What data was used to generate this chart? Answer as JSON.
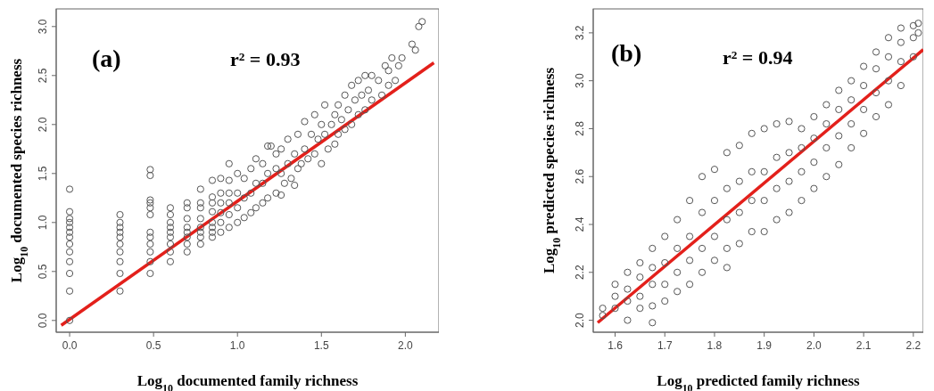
{
  "chart_data": [
    {
      "type": "scatter",
      "xlabel": "Log$_{10}$ documented family richness",
      "ylabel": "Log$_{10}$ documented species richness",
      "annotations": [
        "(a)",
        "r² = 0.93"
      ],
      "marker": "circle",
      "xlim": [
        -0.08,
        2.2
      ],
      "ylim": [
        -0.12,
        3.18
      ],
      "xticks": [
        {
          "value": 0,
          "label": "0.0"
        },
        {
          "value": 0.5,
          "label": "0.5"
        },
        {
          "value": 1,
          "label": "1.0"
        },
        {
          "value": 1.5,
          "label": "1.5"
        },
        {
          "value": 2,
          "label": "2.0"
        }
      ],
      "yticks": [
        {
          "value": 0,
          "label": "0.0"
        },
        {
          "value": 0.5,
          "label": "0.5"
        },
        {
          "value": 1,
          "label": "1.0"
        },
        {
          "value": 1.5,
          "label": "1.5"
        },
        {
          "value": 2,
          "label": "2.0"
        },
        {
          "value": 2.5,
          "label": "2.5"
        },
        {
          "value": 3,
          "label": "3.0"
        }
      ],
      "series": [
        {
          "type": "scatter",
          "color": "#555555",
          "x": [
            0,
            0,
            0,
            0,
            0,
            0,
            0,
            0,
            0,
            0,
            0,
            0,
            0,
            0.3,
            0.3,
            0.3,
            0.3,
            0.3,
            0.3,
            0.3,
            0.3,
            0.3,
            0.3,
            0.48,
            0.48,
            0.48,
            0.48,
            0.48,
            0.48,
            0.48,
            0.48,
            0.48,
            0.48,
            0.48,
            0.48,
            0.6,
            0.6,
            0.6,
            0.6,
            0.6,
            0.6,
            0.6,
            0.6,
            0.6,
            0.7,
            0.7,
            0.7,
            0.7,
            0.7,
            0.7,
            0.7,
            0.7,
            0.78,
            0.78,
            0.78,
            0.78,
            0.78,
            0.78,
            0.78,
            0.78,
            0.85,
            0.85,
            0.85,
            0.85,
            0.85,
            0.85,
            0.85,
            0.85,
            0.9,
            0.9,
            0.9,
            0.9,
            0.9,
            0.9,
            0.95,
            0.95,
            0.95,
            0.95,
            0.95,
            0.95,
            1.0,
            1.0,
            1.0,
            1.0,
            1.04,
            1.04,
            1.04,
            1.08,
            1.08,
            1.08,
            1.11,
            1.11,
            1.11,
            1.15,
            1.15,
            1.15,
            1.18,
            1.18,
            1.18,
            1.2,
            1.23,
            1.23,
            1.23,
            1.26,
            1.26,
            1.26,
            1.28,
            1.3,
            1.3,
            1.32,
            1.34,
            1.34,
            1.36,
            1.36,
            1.38,
            1.4,
            1.4,
            1.42,
            1.44,
            1.46,
            1.46,
            1.48,
            1.5,
            1.5,
            1.52,
            1.52,
            1.54,
            1.56,
            1.58,
            1.58,
            1.6,
            1.6,
            1.62,
            1.64,
            1.64,
            1.66,
            1.68,
            1.68,
            1.7,
            1.72,
            1.72,
            1.74,
            1.76,
            1.76,
            1.78,
            1.8,
            1.8,
            1.84,
            1.86,
            1.88,
            1.9,
            1.9,
            1.92,
            1.94,
            1.96,
            1.98,
            2.04,
            2.06,
            2.08,
            2.1
          ],
          "values": [
            0,
            0.3,
            0.48,
            0.6,
            0.7,
            0.78,
            0.85,
            0.9,
            0.95,
            1.0,
            1.04,
            1.11,
            1.34,
            0.3,
            0.48,
            0.6,
            0.7,
            0.78,
            0.85,
            0.9,
            0.95,
            1.0,
            1.08,
            0.48,
            0.6,
            0.7,
            0.78,
            0.85,
            0.9,
            1.08,
            1.15,
            1.2,
            1.23,
            1.48,
            1.54,
            0.6,
            0.7,
            0.78,
            0.85,
            0.9,
            0.95,
            1.0,
            1.08,
            1.15,
            0.7,
            0.78,
            0.85,
            0.9,
            0.95,
            1.04,
            1.15,
            1.2,
            0.78,
            0.85,
            0.9,
            0.95,
            1.04,
            1.15,
            1.2,
            1.34,
            0.85,
            0.9,
            0.95,
            1.0,
            1.11,
            1.2,
            1.26,
            1.43,
            0.9,
            1.0,
            1.1,
            1.2,
            1.3,
            1.45,
            0.95,
            1.08,
            1.2,
            1.3,
            1.43,
            1.6,
            1.0,
            1.15,
            1.3,
            1.5,
            1.05,
            1.25,
            1.45,
            1.1,
            1.3,
            1.55,
            1.15,
            1.4,
            1.65,
            1.2,
            1.4,
            1.6,
            1.25,
            1.5,
            1.78,
            1.78,
            1.3,
            1.55,
            1.7,
            1.28,
            1.5,
            1.75,
            1.4,
            1.6,
            1.85,
            1.45,
            1.38,
            1.7,
            1.55,
            1.9,
            1.6,
            1.75,
            2.03,
            1.65,
            1.9,
            1.7,
            2.1,
            1.85,
            1.6,
            2.0,
            1.9,
            2.2,
            1.75,
            2.0,
            1.8,
            2.1,
            1.9,
            2.2,
            2.05,
            1.95,
            2.3,
            2.15,
            2.0,
            2.4,
            2.25,
            2.1,
            2.45,
            2.3,
            2.15,
            2.5,
            2.35,
            2.25,
            2.5,
            2.45,
            2.3,
            2.6,
            2.4,
            2.55,
            2.68,
            2.45,
            2.6,
            2.68,
            2.82,
            2.76,
            3.0,
            3.05
          ]
        },
        {
          "type": "line",
          "color": "#e3201b",
          "marker": "none",
          "x": [
            -0.05,
            2.17
          ],
          "values": [
            -0.05,
            2.63
          ]
        }
      ]
    },
    {
      "type": "scatter",
      "xlabel": "Log$_{10}$ predicted family richness",
      "ylabel": "Log$_{10}$ predicted species richness",
      "annotations": [
        "(b)",
        "r² = 0.94"
      ],
      "marker": "circle",
      "xlim": [
        1.556,
        2.22
      ],
      "ylim": [
        1.95,
        3.3
      ],
      "xticks": [
        1.6,
        1.7,
        1.8,
        1.9,
        {
          "value": 2,
          "label": "2.0"
        },
        2.1,
        2.2
      ],
      "yticks": [
        {
          "value": 2,
          "label": "2.0"
        },
        2.2,
        2.4,
        2.6,
        2.8,
        {
          "value": 3,
          "label": "3.0"
        },
        3.2
      ],
      "series": [
        {
          "type": "scatter",
          "color": "#555555",
          "x": [
            1.575,
            1.575,
            1.6,
            1.6,
            1.6,
            1.625,
            1.625,
            1.625,
            1.625,
            1.65,
            1.65,
            1.65,
            1.65,
            1.675,
            1.675,
            1.675,
            1.675,
            1.675,
            1.7,
            1.7,
            1.7,
            1.7,
            1.725,
            1.725,
            1.725,
            1.725,
            1.75,
            1.75,
            1.75,
            1.75,
            1.775,
            1.775,
            1.775,
            1.775,
            1.8,
            1.8,
            1.8,
            1.8,
            1.825,
            1.825,
            1.825,
            1.825,
            1.825,
            1.85,
            1.85,
            1.85,
            1.85,
            1.875,
            1.875,
            1.875,
            1.875,
            1.9,
            1.9,
            1.9,
            1.9,
            1.925,
            1.925,
            1.925,
            1.925,
            1.95,
            1.95,
            1.95,
            1.95,
            1.975,
            1.975,
            1.975,
            1.975,
            2.0,
            2.0,
            2.0,
            2.0,
            2.025,
            2.025,
            2.025,
            2.025,
            2.05,
            2.05,
            2.05,
            2.05,
            2.075,
            2.075,
            2.075,
            2.075,
            2.1,
            2.1,
            2.1,
            2.1,
            2.125,
            2.125,
            2.125,
            2.125,
            2.15,
            2.15,
            2.15,
            2.15,
            2.175,
            2.175,
            2.175,
            2.175,
            2.2,
            2.2,
            2.2,
            2.21,
            2.21
          ],
          "values": [
            2.02,
            2.05,
            2.05,
            2.1,
            2.15,
            2.0,
            2.08,
            2.13,
            2.2,
            2.05,
            2.1,
            2.18,
            2.24,
            1.99,
            2.06,
            2.15,
            2.22,
            2.3,
            2.08,
            2.15,
            2.24,
            2.35,
            2.12,
            2.2,
            2.3,
            2.42,
            2.15,
            2.25,
            2.35,
            2.5,
            2.2,
            2.3,
            2.45,
            2.6,
            2.25,
            2.35,
            2.5,
            2.63,
            2.22,
            2.3,
            2.42,
            2.55,
            2.7,
            2.32,
            2.45,
            2.58,
            2.73,
            2.37,
            2.5,
            2.62,
            2.78,
            2.37,
            2.5,
            2.62,
            2.8,
            2.42,
            2.55,
            2.68,
            2.82,
            2.45,
            2.58,
            2.7,
            2.83,
            2.5,
            2.62,
            2.72,
            2.8,
            2.55,
            2.66,
            2.76,
            2.85,
            2.6,
            2.72,
            2.82,
            2.9,
            2.65,
            2.77,
            2.88,
            2.96,
            2.72,
            2.82,
            2.92,
            3.0,
            2.78,
            2.88,
            2.98,
            3.06,
            2.85,
            2.95,
            3.05,
            3.12,
            2.9,
            3.0,
            3.1,
            3.18,
            2.98,
            3.08,
            3.16,
            3.22,
            3.1,
            3.18,
            3.23,
            3.2,
            3.24
          ]
        },
        {
          "type": "line",
          "color": "#e3201b",
          "marker": "none",
          "x": [
            1.565,
            2.22
          ],
          "values": [
            1.99,
            3.13
          ]
        }
      ]
    }
  ]
}
